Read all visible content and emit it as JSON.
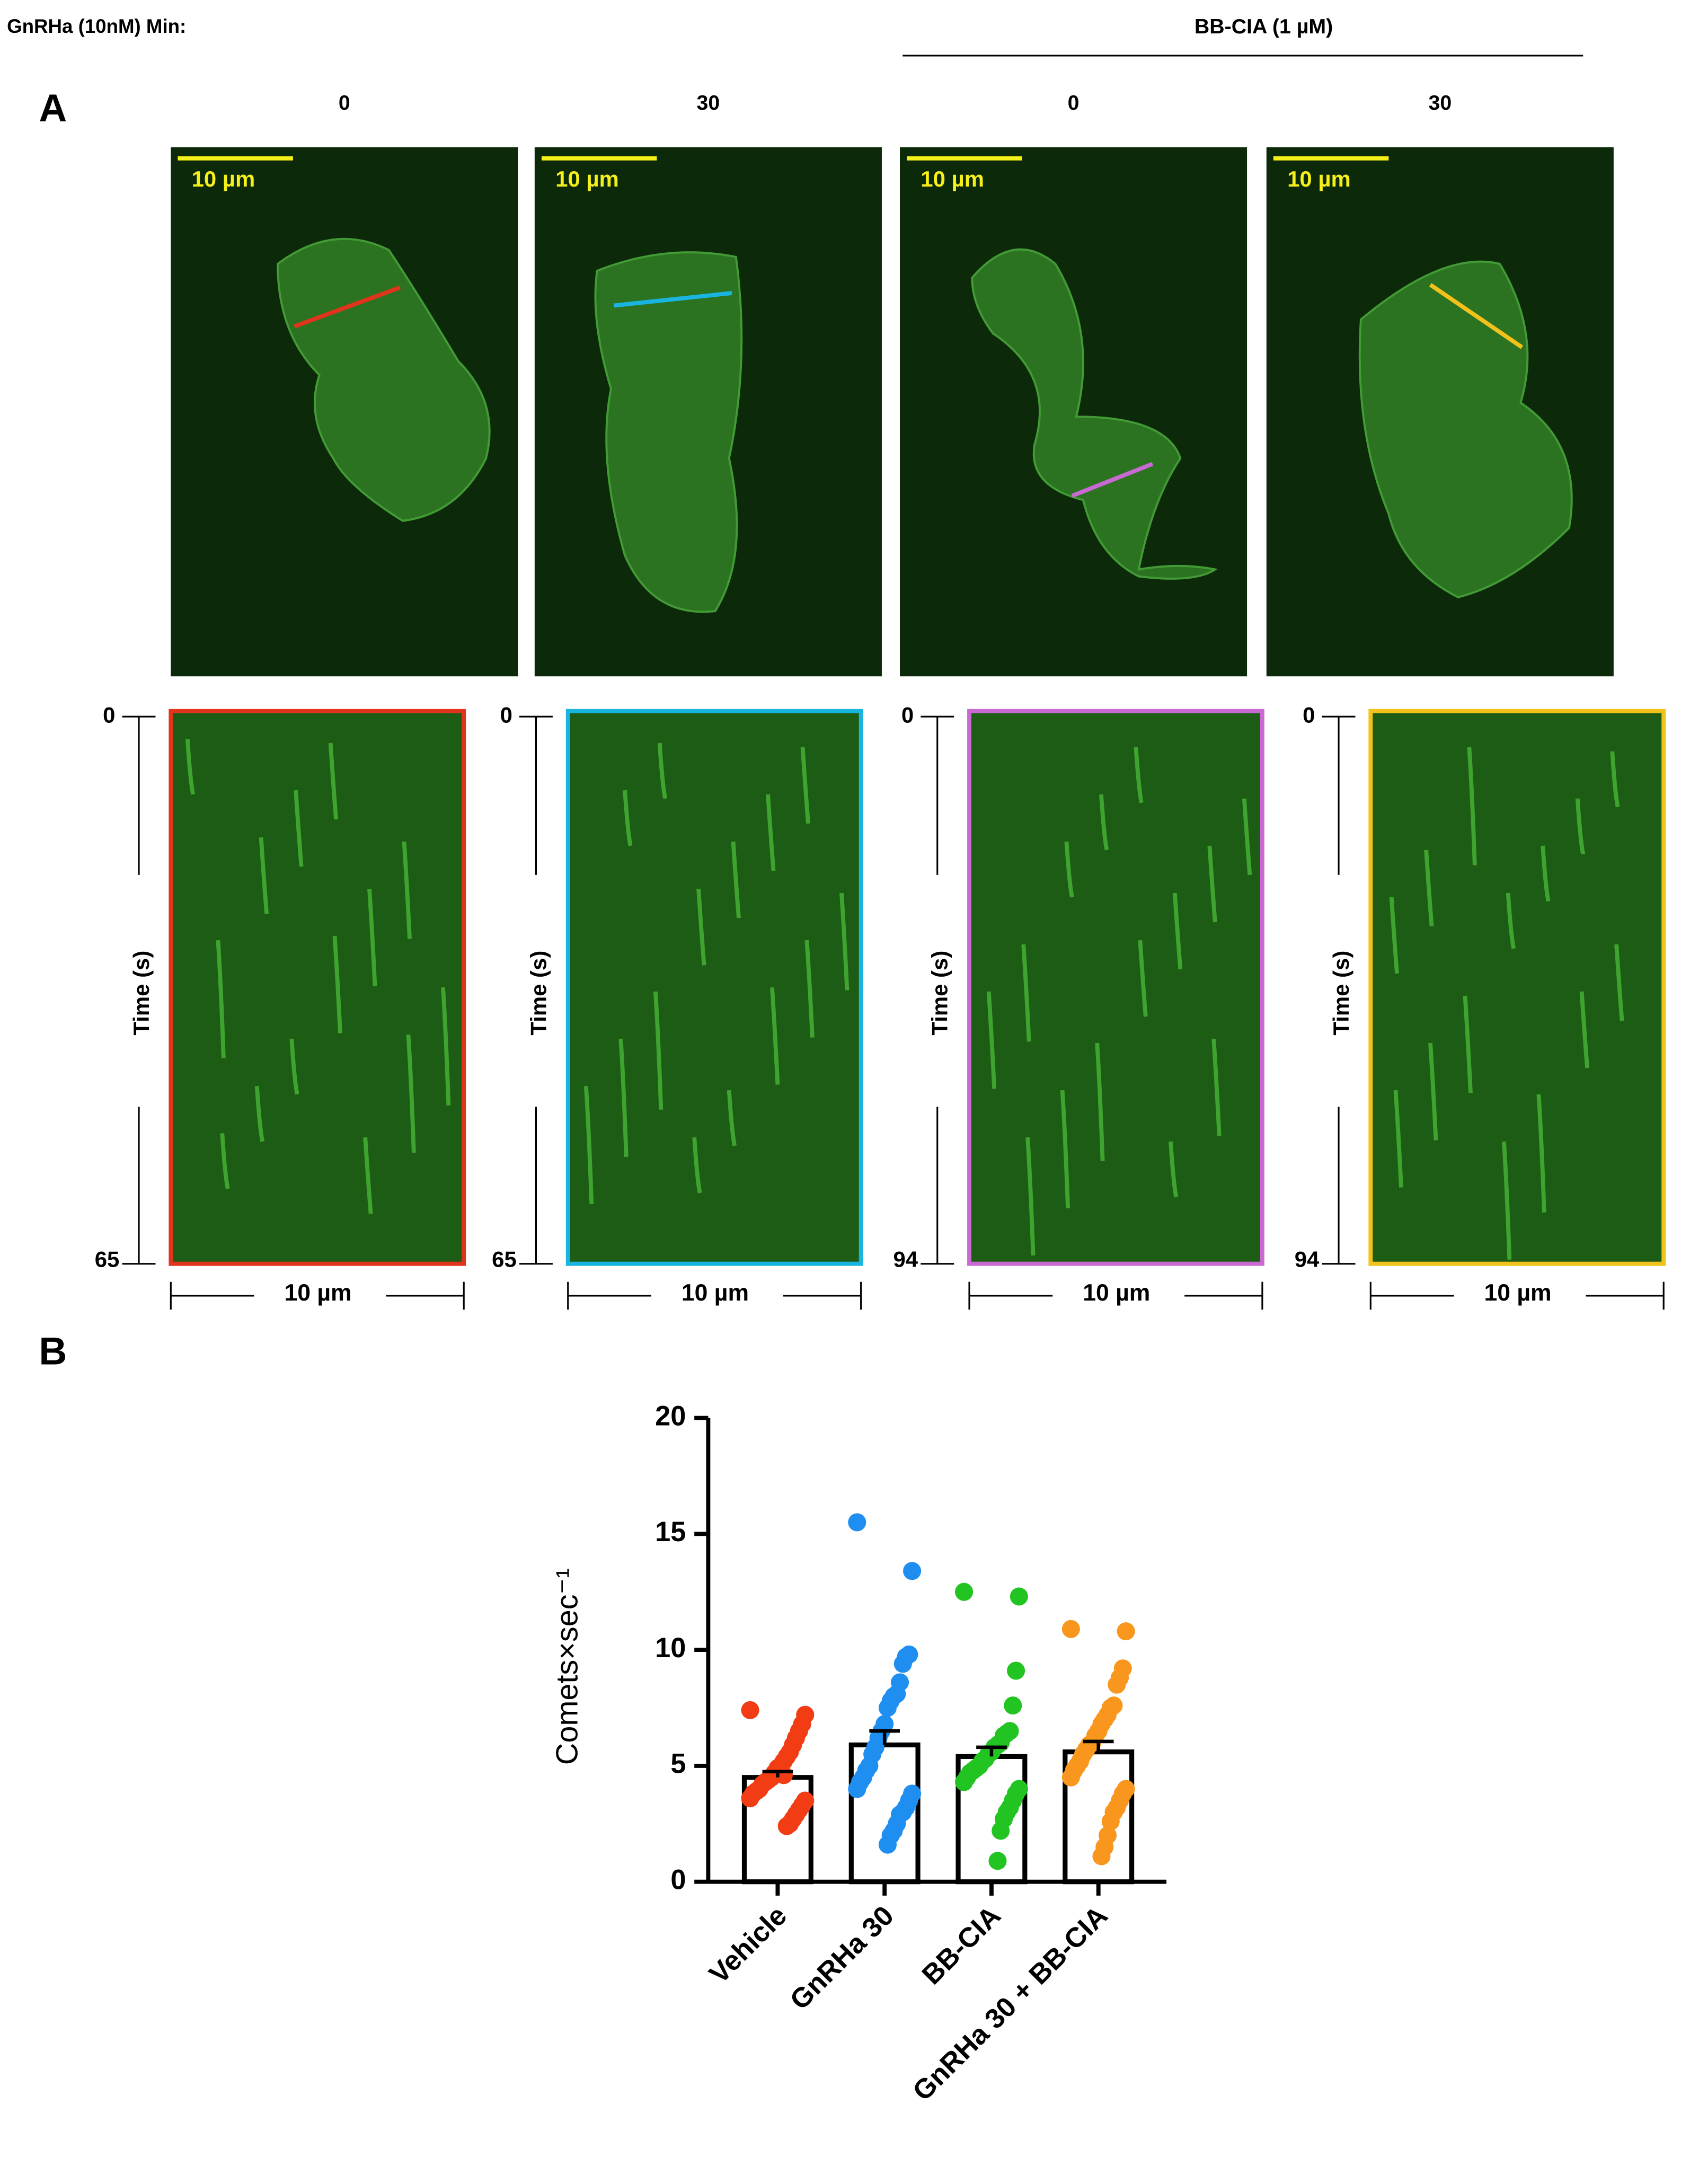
{
  "header": {
    "treatment": "GnRHa (10nM) Min:",
    "drug": "BB-CIA (1 µM)"
  },
  "panel_a": {
    "label": "A",
    "columns": [
      {
        "minutes": 0,
        "scale_bar": "10 µm",
        "time_start": 0,
        "time_end": 65,
        "time_label": "Time (s)",
        "kymo_scale": "10 µm"
      },
      {
        "minutes": 30,
        "scale_bar": "10 µm",
        "time_start": 0,
        "time_end": 65,
        "time_label": "Time (s)",
        "kymo_scale": "10 µm"
      },
      {
        "minutes": 0,
        "scale_bar": "10 µm",
        "time_start": 0,
        "time_end": 94,
        "time_label": "Time (s)",
        "kymo_scale": "10 µm"
      },
      {
        "minutes": 30,
        "scale_bar": "10 µm",
        "time_start": 0,
        "time_end": 94,
        "time_label": "Time (s)",
        "kymo_scale": "10 µm"
      }
    ]
  },
  "panel_b": {
    "label": "B"
  },
  "chart_data": {
    "type": "bar",
    "categories": [
      "Vehicle",
      "GnRHa 30",
      "BB-CIA",
      "GnRHa 30 + BB-CIA"
    ],
    "values": [
      4.5,
      5.9,
      5.4,
      5.6
    ],
    "errors": [
      0.25,
      0.6,
      0.4,
      0.45
    ],
    "colors": [
      "#f23c14",
      "#1e8ef0",
      "#22c422",
      "#f8961e"
    ],
    "points": [
      [
        7.4,
        7.2,
        6.8,
        6.5,
        6.2,
        5.9,
        5.6,
        5.4,
        5.2,
        5.0,
        4.9,
        4.7,
        4.5,
        4.4,
        4.3,
        4.2,
        4.0,
        3.9,
        3.8,
        3.6,
        3.5,
        3.3,
        3.1,
        2.9,
        2.7,
        2.5,
        2.4,
        4.6
      ],
      [
        15.5,
        13.4,
        9.8,
        9.7,
        9.4,
        8.6,
        8.1,
        8.0,
        7.8,
        7.5,
        6.8,
        6.5,
        6.2,
        5.8,
        5.5,
        5.0,
        4.8,
        4.5,
        4.3,
        4.0,
        3.8,
        3.5,
        3.2,
        3.0,
        2.9,
        2.5,
        2.2,
        2.0,
        1.6
      ],
      [
        12.5,
        12.3,
        9.1,
        7.6,
        6.5,
        6.4,
        6.3,
        6.0,
        5.9,
        5.8,
        5.6,
        5.5,
        5.3,
        5.2,
        5.0,
        4.9,
        4.8,
        4.7,
        4.5,
        4.3,
        4.0,
        3.8,
        3.5,
        3.2,
        3.0,
        2.7,
        2.2,
        0.9
      ],
      [
        10.9,
        10.8,
        9.2,
        8.8,
        8.5,
        7.6,
        7.5,
        7.2,
        7.0,
        6.8,
        6.5,
        6.3,
        6.0,
        5.9,
        5.7,
        5.5,
        5.2,
        5.0,
        4.8,
        4.5,
        4.0,
        3.8,
        3.5,
        3.2,
        3.0,
        2.6,
        2.0,
        1.5,
        1.1
      ]
    ],
    "y_label": "Comets×sec⁻¹",
    "ylim": [
      0,
      20
    ],
    "yticks": [
      0,
      5,
      10,
      15,
      20
    ]
  }
}
